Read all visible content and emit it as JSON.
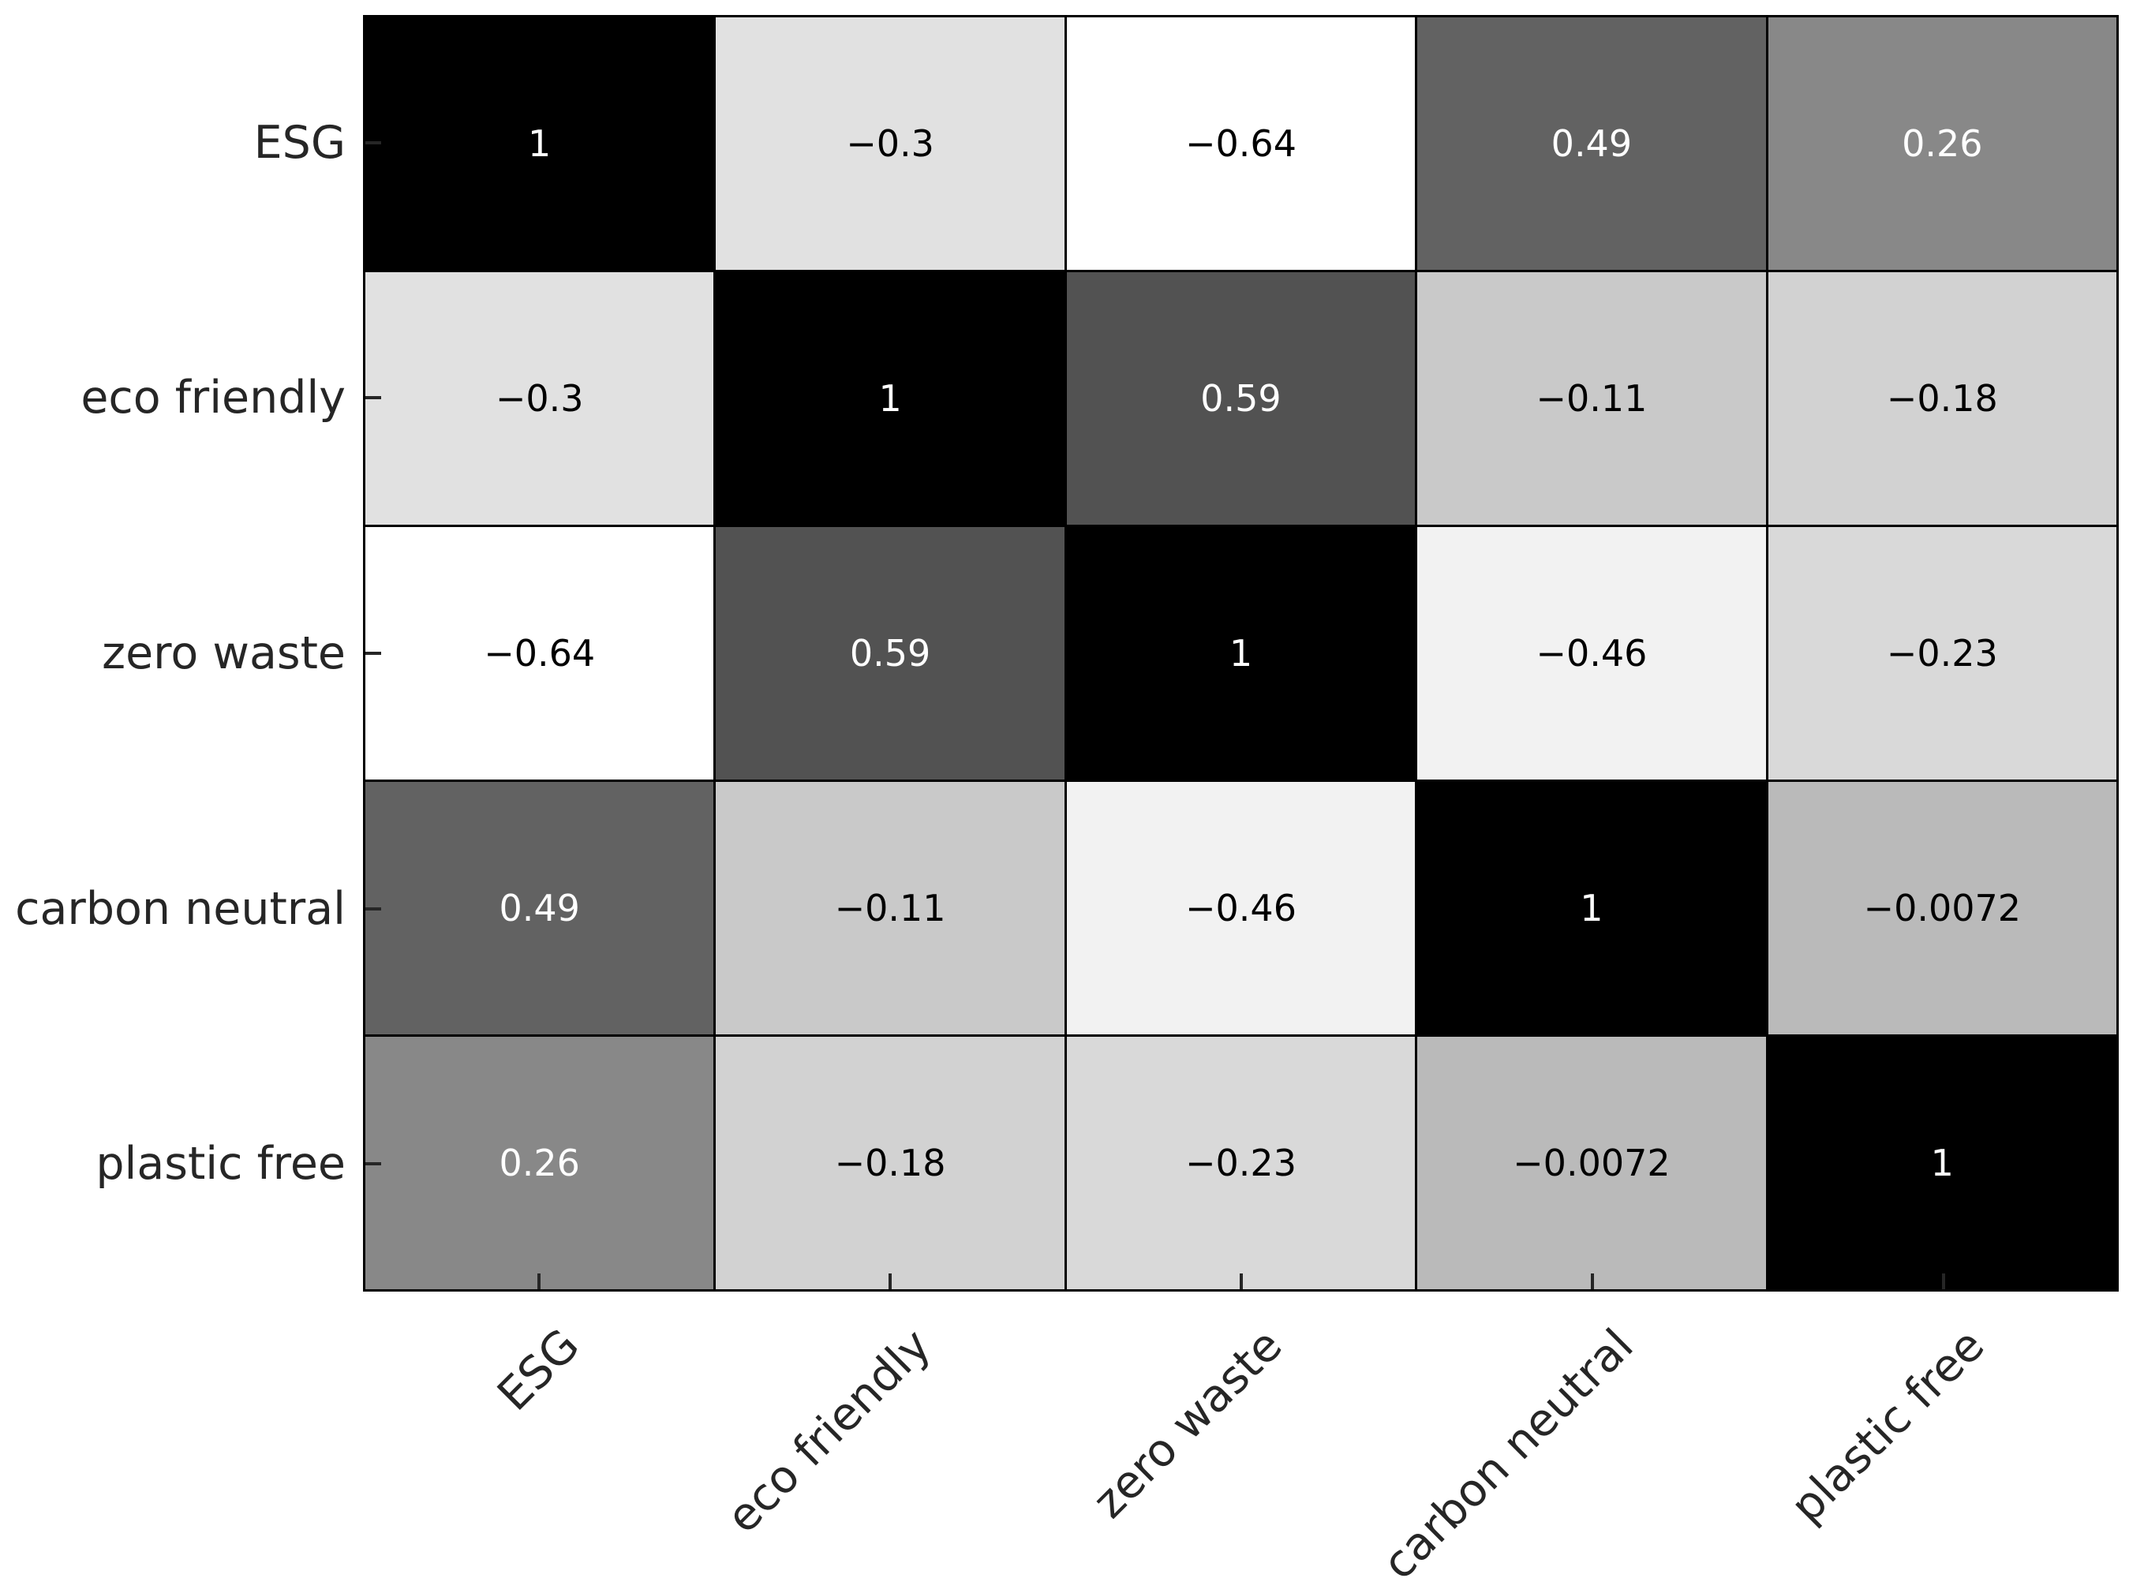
{
  "chart_data": {
    "type": "heatmap",
    "title": "",
    "categories": [
      "ESG",
      "eco friendly",
      "zero waste",
      "carbon neutral",
      "plastic free"
    ],
    "matrix": [
      [
        1,
        -0.3,
        -0.64,
        0.49,
        0.26
      ],
      [
        -0.3,
        1,
        0.59,
        -0.11,
        -0.18
      ],
      [
        -0.64,
        0.59,
        1,
        -0.46,
        -0.23
      ],
      [
        0.49,
        -0.11,
        -0.46,
        1,
        -0.0072
      ],
      [
        0.26,
        -0.18,
        -0.23,
        -0.0072,
        1
      ]
    ],
    "cell_labels": [
      [
        "1",
        "−0.3",
        "−0.64",
        "0.49",
        "0.26"
      ],
      [
        "−0.3",
        "1",
        "0.59",
        "−0.11",
        "−0.18"
      ],
      [
        "−0.64",
        "0.59",
        "1",
        "−0.46",
        "−0.23"
      ],
      [
        "0.49",
        "−0.11",
        "−0.46",
        "1",
        "−0.0072"
      ],
      [
        "0.26",
        "−0.18",
        "−0.23",
        "−0.0072",
        "1"
      ]
    ],
    "colormap": {
      "name": "Greys",
      "vmin": -0.64,
      "vmax": 1,
      "stops": [
        "#ffffff",
        "#f0f0f0",
        "#d9d9d9",
        "#bdbdbd",
        "#969696",
        "#737373",
        "#525252",
        "#252525",
        "#000000"
      ]
    },
    "annotation_text_colors": {
      "on_dark": "#ffffff",
      "on_light": "#000000"
    },
    "grid_line_color": "#000000",
    "axis": {
      "tick_color": "#262626",
      "label_color": "#262626",
      "x_tick_label_rotation_deg": 45,
      "tick_direction": "in"
    },
    "legend": {
      "visible": false
    }
  }
}
